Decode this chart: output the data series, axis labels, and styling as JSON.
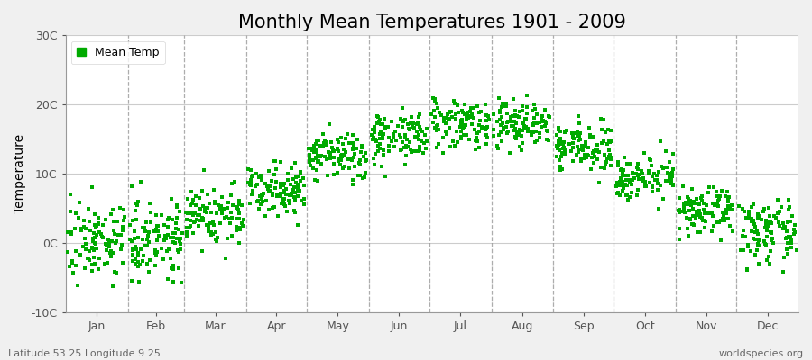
{
  "title": "Monthly Mean Temperatures 1901 - 2009",
  "ylabel": "Temperature",
  "xlabel_months": [
    "Jan",
    "Feb",
    "Mar",
    "Apr",
    "May",
    "Jun",
    "Jul",
    "Aug",
    "Sep",
    "Oct",
    "Nov",
    "Dec"
  ],
  "monthly_means": [
    0.5,
    0.8,
    4.0,
    8.0,
    12.5,
    15.5,
    17.5,
    17.2,
    13.8,
    9.5,
    4.5,
    1.5
  ],
  "monthly_stds": [
    2.8,
    2.8,
    2.2,
    1.8,
    1.8,
    1.8,
    1.8,
    1.8,
    1.6,
    1.5,
    1.6,
    2.2
  ],
  "n_years": 109,
  "dot_color": "#00aa00",
  "dot_size": 5,
  "ylim": [
    -10,
    30
  ],
  "yticks": [
    -10,
    0,
    10,
    20,
    30
  ],
  "ytick_labels": [
    "-10C",
    "0C",
    "10C",
    "20C",
    "30C"
  ],
  "outer_bg_color": "#f0f0f0",
  "plot_bg_color": "#ffffff",
  "legend_label": "Mean Temp",
  "footer_left": "Latitude 53.25 Longitude 9.25",
  "footer_right": "worldspecies.org",
  "title_fontsize": 15,
  "axis_label_fontsize": 10,
  "tick_fontsize": 9,
  "footer_fontsize": 8,
  "dashed_line_color": "#999999"
}
